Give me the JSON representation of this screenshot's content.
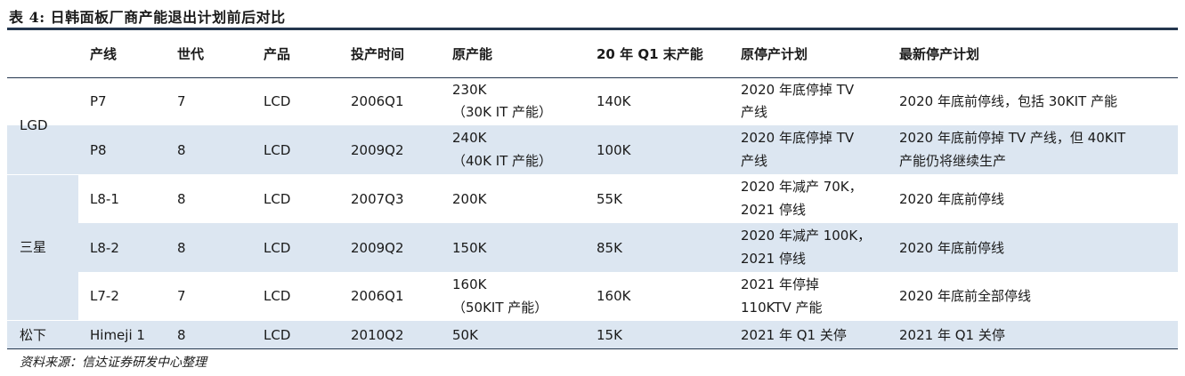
{
  "title": "表 4:  日韩面板厂商产能退出计划前后对比",
  "headers": [
    "产线",
    "世代",
    "产品",
    "投产时间",
    "原产能",
    "20 年 Q1 末产能",
    "原停产计划",
    "最新停产计划"
  ],
  "groups": [
    "LGD",
    "三星",
    "松下"
  ],
  "rows": [
    {
      "line": "P7",
      "gen": "7",
      "product": "LCD",
      "start": "2006Q1",
      "orig_cap": [
        "230K",
        "（30K IT 产能）"
      ],
      "q1_cap": "140K",
      "orig_plan": [
        "2020 年底停掉 TV",
        "产线"
      ],
      "new_plan": [
        "2020 年底前停线，包括 30KIT 产能"
      ]
    },
    {
      "line": "P8",
      "gen": "8",
      "product": "LCD",
      "start": "2009Q2",
      "orig_cap": [
        "240K",
        "（40K IT 产能）"
      ],
      "q1_cap": "100K",
      "orig_plan": [
        "2020 年底停掉 TV",
        "产线"
      ],
      "new_plan": [
        "2020 年底前停掉 TV 产线，但 40KIT",
        "产能仍将继续生产"
      ]
    },
    {
      "line": "L8-1",
      "gen": "8",
      "product": "LCD",
      "start": "2007Q3",
      "orig_cap": [
        "200K"
      ],
      "q1_cap": "55K",
      "orig_plan": [
        "2020 年减产 70K，",
        "2021 停线"
      ],
      "new_plan": [
        "2020 年底前停线"
      ]
    },
    {
      "line": "L8-2",
      "gen": "8",
      "product": "LCD",
      "start": "2009Q2",
      "orig_cap": [
        "150K"
      ],
      "q1_cap": "85K",
      "orig_plan": [
        "2020 年减产 100K，",
        "2021 停线"
      ],
      "new_plan": [
        "2020 年底前停线"
      ]
    },
    {
      "line": "L7-2",
      "gen": "7",
      "product": "LCD",
      "start": "2006Q1",
      "orig_cap": [
        "160K",
        "（50KIT 产能）"
      ],
      "q1_cap": "160K",
      "orig_plan": [
        "2021 年停掉",
        "110KTV 产能"
      ],
      "new_plan": [
        "2020 年底前全部停线"
      ]
    },
    {
      "line": "Himeji 1",
      "gen": "8",
      "product": "LCD",
      "start": "2010Q2",
      "orig_cap": [
        "50K"
      ],
      "q1_cap": "15K",
      "orig_plan": [
        "2021 年 Q1 关停"
      ],
      "new_plan": [
        "2021 年 Q1 关停"
      ]
    }
  ],
  "source": "资料来源：信达证券研发中心整理"
}
